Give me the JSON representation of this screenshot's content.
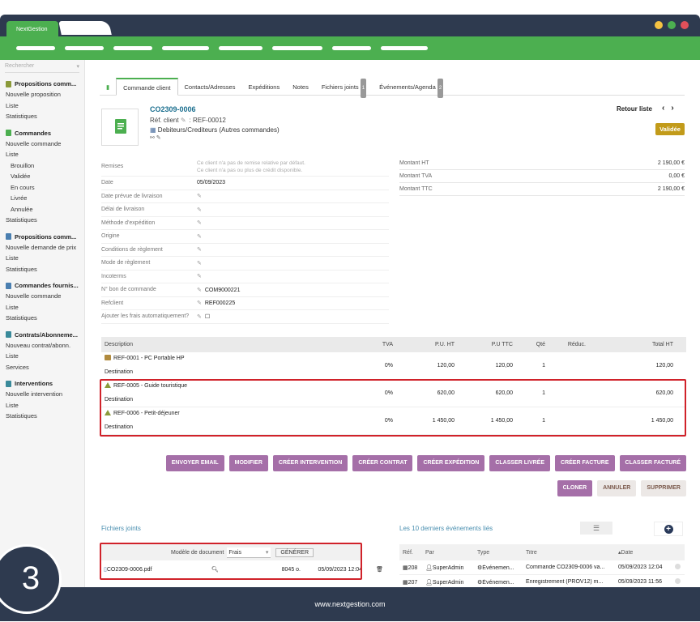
{
  "browser": {
    "tab_title": "NextGestion",
    "dot_colors": [
      "#f5c242",
      "#4caf50",
      "#e0505a"
    ]
  },
  "sidebar": {
    "search_placeholder": "Rechercher",
    "sections": [
      {
        "title": "Propositions comm...",
        "icon_color": "#8b9a3a",
        "items": [
          "Nouvelle proposition",
          "Liste",
          "Statistiques"
        ]
      },
      {
        "title": "Commandes",
        "icon_color": "#4caf50",
        "items": [
          "Nouvelle commande",
          "Liste"
        ],
        "subitems": [
          "Brouillon",
          "Validée",
          "En cours",
          "Livrée",
          "Annulée"
        ],
        "after": [
          "Statistiques"
        ]
      },
      {
        "title": "Propositions comm...",
        "icon_color": "#4a7fb0",
        "items": [
          "Nouvelle demande de prix",
          "Liste",
          "Statistiques"
        ]
      },
      {
        "title": "Commandes fournis...",
        "icon_color": "#4a7fb0",
        "items": [
          "Nouvelle commande",
          "Liste",
          "Statistiques"
        ]
      },
      {
        "title": "Contrats/Abonneme...",
        "icon_color": "#3a8a9a",
        "items": [
          "Nouveau contrat/abonn.",
          "Liste",
          "Services"
        ]
      },
      {
        "title": "Interventions",
        "icon_color": "#3a8a9a",
        "items": [
          "Nouvelle intervention",
          "Liste",
          "Statistiques"
        ]
      }
    ]
  },
  "tabs": [
    "Commande client",
    "Contacts/Adresses",
    "Expéditions",
    "Notes",
    "Fichiers joints",
    "Événements/Agenda"
  ],
  "tab_badges": {
    "files": "1",
    "events": "2"
  },
  "order": {
    "ref": "CO2309-0006",
    "ref_client_label": "Réf. client",
    "ref_client": ": REF-00012",
    "thirdparty": "Debiteurs/Crediteurs (Autres commandes)",
    "retour": "Retour liste",
    "status": "Validée"
  },
  "fields": [
    {
      "label": "Remises",
      "value": "",
      "note1": "Ce client n'a pas de remise relative par défaut.",
      "note2": "Ce client n'a pas ou plus de crédit disponible."
    },
    {
      "label": "Date",
      "value": "05/09/2023"
    },
    {
      "label": "Date prévue de livraison",
      "value": ""
    },
    {
      "label": "Délai de livraison",
      "value": ""
    },
    {
      "label": "Méthode d'expédition",
      "value": ""
    },
    {
      "label": "Origine",
      "value": ""
    },
    {
      "label": "Conditions de règlement",
      "value": ""
    },
    {
      "label": "Mode de règlement",
      "value": ""
    },
    {
      "label": "Incoterms",
      "value": ""
    },
    {
      "label": "N° bon de commande",
      "value": "COM9000221"
    },
    {
      "label": "Refclient",
      "value": "REF000225"
    },
    {
      "label": "Ajouter les frais automatiquement?",
      "value": ""
    }
  ],
  "amounts": [
    {
      "label": "Montant HT",
      "value": "2 190,00 €"
    },
    {
      "label": "Montant TVA",
      "value": "0,00 €"
    },
    {
      "label": "Montant TTC",
      "value": "2 190,00 €"
    }
  ],
  "lines_header": {
    "desc": "Description",
    "tva": "TVA",
    "pu": "P.U. HT",
    "puttc": "P.U TTC",
    "qte": "Qté",
    "red": "Réduc.",
    "tot": "Total HT"
  },
  "lines": [
    {
      "ref": "REF-0001 - PC Portable HP",
      "sub": "Destination",
      "tva": "0%",
      "pu": "120,00",
      "puttc": "120,00",
      "qte": "1",
      "tot": "120,00"
    },
    {
      "ref": "REF-0005 - Guide touristique",
      "sub": "Destination",
      "tva": "0%",
      "pu": "620,00",
      "puttc": "620,00",
      "qte": "1",
      "tot": "620,00"
    },
    {
      "ref": "REF-0006 - Petit-déjeuner",
      "sub": "Destination",
      "tva": "0%",
      "pu": "1 450,00",
      "puttc": "1 450,00",
      "qte": "1",
      "tot": "1 450,00"
    }
  ],
  "buttons_row1": [
    "ENVOYER EMAIL",
    "MODIFIER",
    "CRÉER INTERVENTION",
    "CRÉER CONTRAT",
    "CRÉER EXPÉDITION",
    "CLASSER LIVRÉE",
    "CRÉER FACTURE",
    "CLASSER FACTURÉ"
  ],
  "buttons_row2": [
    "CLONER",
    "ANNULER",
    "SUPPRIMER"
  ],
  "files": {
    "title": "Fichiers joints",
    "model_label": "Modèle de document",
    "model_value": "Frais",
    "generate": "GÉNÉRER",
    "file_name": "CO2309-0006.pdf",
    "size": "8045 o.",
    "date": "05/09/2023 12:04"
  },
  "events": {
    "title": "Les 10 derniers événements liés",
    "headers": {
      "ref": "Réf.",
      "par": "Par",
      "type": "Type",
      "titre": "Titre",
      "date": "Date"
    },
    "rows": [
      {
        "ref": "208",
        "par": "SuperAdmin",
        "type": "Événemen...",
        "titre": "Commande CO2309-0006 va...",
        "date": "05/09/2023 12:04"
      },
      {
        "ref": "207",
        "par": "SuperAdmin",
        "type": "Événemen...",
        "titre": "Enregistrement (PROV12) m...",
        "date": "05/09/2023 11:56"
      }
    ]
  },
  "footer": {
    "url": "www.nextgestion.com",
    "step": "3"
  }
}
